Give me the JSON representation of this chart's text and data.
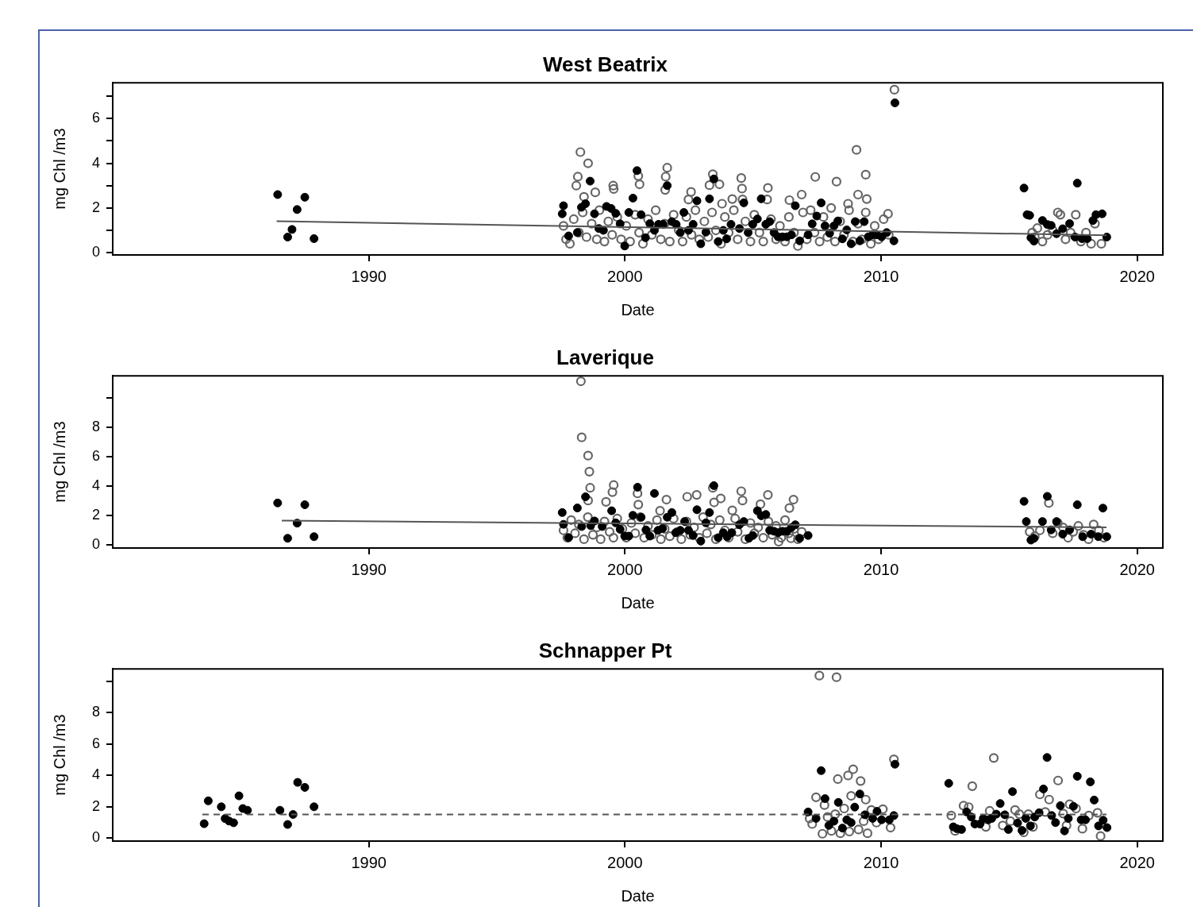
{
  "chart_data": [
    {
      "type": "scatter",
      "title": "West Beatrix",
      "xlabel": "Date",
      "ylabel": "mg Chl /m3",
      "marker": "circle",
      "xlim": [
        1980,
        2021
      ],
      "xticks": [
        1990,
        2000,
        2010,
        2020
      ],
      "ylim": [
        -0.1,
        7.6
      ],
      "yticks": [
        0,
        {
          "value": 1,
          "label": null
        },
        2,
        {
          "value": 3,
          "label": null
        },
        4,
        {
          "value": 5,
          "label": null
        },
        6,
        {
          "value": 7,
          "label": null
        }
      ],
      "series": [
        {
          "color": "#666666",
          "x": [
            1998.26,
            1998.56,
            1998.16,
            1998.1,
            1998.4,
            1998.84,
            1999.54,
            1999.56,
            2000.52,
            2000.57,
            2001.65,
            2001.57,
            2001.59,
            2002.58,
            2002.48,
            2003.43,
            2003.3,
            2003.69,
            2003.79,
            2004.19,
            2004.54,
            2004.57,
            2004.59,
            2005.58,
            2005.55,
            2006.42,
            2006.9,
            2007.43,
            2008.26,
            2008.71,
            2009.04,
            2009.4,
            2009.1,
            2009.44,
            2010.27,
            2010.52,
            1997.6,
            1997.7,
            1997.85,
            1998.0,
            1998.2,
            1998.35,
            1998.5,
            1998.7,
            1998.9,
            1999.0,
            1999.2,
            1999.35,
            1999.5,
            1999.7,
            1999.85,
            2000.05,
            2000.2,
            2000.4,
            2000.55,
            2000.7,
            2000.9,
            2001.05,
            2001.2,
            2001.4,
            2001.55,
            2001.75,
            2001.9,
            2002.1,
            2002.25,
            2002.4,
            2002.6,
            2002.75,
            2002.9,
            2003.1,
            2003.25,
            2003.4,
            2003.55,
            2003.75,
            2003.9,
            2004.05,
            2004.25,
            2004.4,
            2004.7,
            2004.9,
            2005.05,
            2005.25,
            2005.4,
            2005.7,
            2005.9,
            2006.05,
            2006.25,
            2006.4,
            2006.6,
            2006.75,
            2006.95,
            2007.1,
            2007.25,
            2007.4,
            2007.6,
            2007.75,
            2007.9,
            2008.05,
            2008.2,
            2008.4,
            2008.55,
            2008.75,
            2008.9,
            2009.1,
            2009.25,
            2009.4,
            2009.6,
            2009.75,
            2009.9,
            2010.1,
            2010.3,
            2015.9,
            2016.1,
            2016.3,
            2016.5,
            2016.7,
            2016.9,
            2017.0,
            2017.2,
            2017.4,
            2017.6,
            2017.8,
            2018.0,
            2018.2,
            2018.35,
            2018.6,
            2016.0
          ],
          "values": [
            4.5,
            4.0,
            3.4,
            3.0,
            2.5,
            2.7,
            3.0,
            2.85,
            3.43,
            3.06,
            3.8,
            2.81,
            3.4,
            2.72,
            2.38,
            3.51,
            3.02,
            3.06,
            2.19,
            2.4,
            3.34,
            2.87,
            2.38,
            2.9,
            2.38,
            2.35,
            2.6,
            3.39,
            3.18,
            2.19,
            4.6,
            3.49,
            2.6,
            2.4,
            1.74,
            7.29,
            1.2,
            0.6,
            0.4,
            1.5,
            0.9,
            1.8,
            0.7,
            1.3,
            0.6,
            1.9,
            0.5,
            1.4,
            0.8,
            1.6,
            0.6,
            1.2,
            0.5,
            1.7,
            0.9,
            0.4,
            1.5,
            0.8,
            1.9,
            0.6,
            1.3,
            0.5,
            1.7,
            1.0,
            0.5,
            1.6,
            0.8,
            1.9,
            0.6,
            1.4,
            0.7,
            1.8,
            1.0,
            0.4,
            1.6,
            0.9,
            1.9,
            0.6,
            1.4,
            0.5,
            1.7,
            0.9,
            0.5,
            1.5,
            0.6,
            1.2,
            0.5,
            1.6,
            0.9,
            0.3,
            1.8,
            0.6,
            1.9,
            0.9,
            0.5,
            1.6,
            0.7,
            2.0,
            0.5,
            1.4,
            0.8,
            1.9,
            0.5,
            1.3,
            0.6,
            1.8,
            0.4,
            1.2,
            0.6,
            1.5,
            0.8,
            0.9,
            1.1,
            0.5,
            0.8,
            1.0,
            1.8,
            1.7,
            0.6,
            0.9,
            1.7,
            0.5,
            0.9,
            0.4,
            1.3,
            0.4,
            0.7
          ]
        },
        {
          "color": "#000000",
          "x": [
            1986.44,
            1986.83,
            1987.0,
            1987.2,
            1987.5,
            1987.86,
            1997.6,
            1997.55,
            1997.8,
            1998.14,
            1998.3,
            1998.46,
            1998.64,
            1998.81,
            1998.98,
            1999.16,
            1999.28,
            1999.46,
            1999.64,
            1999.81,
            1999.99,
            2000.15,
            2000.31,
            2000.47,
            2000.63,
            2000.8,
            2000.97,
            2001.15,
            2001.31,
            2001.49,
            2001.65,
            2001.83,
            2002.0,
            2002.16,
            2002.3,
            2002.48,
            2002.66,
            2002.81,
            2002.96,
            2003.16,
            2003.3,
            2003.47,
            2003.64,
            2003.84,
            2003.97,
            2004.14,
            2004.47,
            2004.64,
            2004.81,
            2004.99,
            2005.17,
            2005.32,
            2005.5,
            2005.65,
            2005.82,
            2005.98,
            2006.15,
            2006.32,
            2006.5,
            2006.65,
            2006.82,
            2007.15,
            2007.31,
            2007.49,
            2007.66,
            2007.81,
            2007.99,
            2008.16,
            2008.31,
            2008.49,
            2008.66,
            2008.83,
            2008.99,
            2009.17,
            2009.34,
            2009.5,
            2009.67,
            2009.84,
            2010.02,
            2010.22,
            2010.5,
            2010.54,
            2015.58,
            2015.7,
            2015.8,
            2015.85,
            2015.97,
            2016.3,
            2016.49,
            2016.64,
            2016.85,
            2017.09,
            2017.36,
            2017.66,
            2017.57,
            2017.84,
            2018.05,
            2018.27,
            2018.39,
            2018.63,
            2018.81
          ],
          "values": [
            2.6,
            0.7,
            1.04,
            1.93,
            2.48,
            0.63,
            2.1,
            1.74,
            0.75,
            0.9,
            2.03,
            2.19,
            3.2,
            1.74,
            1.08,
            1.0,
            2.07,
            1.98,
            1.76,
            1.29,
            0.3,
            1.8,
            2.44,
            3.67,
            1.7,
            0.67,
            1.3,
            1.0,
            1.27,
            1.27,
            3.0,
            1.39,
            1.27,
            0.9,
            1.8,
            1.0,
            1.27,
            2.32,
            0.4,
            0.92,
            2.41,
            3.3,
            0.5,
            1.0,
            0.62,
            1.27,
            1.08,
            2.23,
            0.9,
            1.27,
            1.51,
            2.41,
            1.27,
            1.39,
            0.9,
            0.71,
            0.71,
            0.71,
            0.8,
            2.1,
            0.53,
            0.8,
            1.29,
            1.64,
            2.23,
            1.2,
            0.87,
            1.2,
            1.42,
            0.62,
            1.02,
            0.4,
            1.39,
            0.53,
            1.39,
            0.71,
            0.8,
            0.8,
            0.71,
            0.9,
            0.53,
            6.7,
            2.89,
            1.7,
            1.67,
            0.67,
            0.52,
            1.44,
            1.26,
            1.22,
            0.85,
            1.07,
            1.3,
            3.11,
            0.7,
            0.63,
            0.63,
            1.44,
            1.7,
            1.74,
            0.7
          ]
        },
        {
          "type": "line",
          "color": "#555555",
          "marker": "none",
          "line_style": "solid",
          "x": [
            1986.4,
            2018.8
          ],
          "values": [
            1.41,
            0.78
          ]
        }
      ]
    },
    {
      "type": "scatter",
      "title": "Laverique",
      "xlabel": "Date",
      "ylabel": "mg Chl /m3",
      "marker": "circle",
      "xlim": [
        1980,
        2021
      ],
      "xticks": [
        1990,
        2000,
        2010,
        2020
      ],
      "ylim": [
        -0.2,
        11.5
      ],
      "yticks": [
        0,
        2,
        4,
        6,
        8,
        {
          "value": 10,
          "label": null
        }
      ],
      "series": [
        {
          "color": "#666666",
          "x": [
            1998.28,
            1998.31,
            1998.56,
            1998.61,
            1998.64,
            1998.56,
            1999.56,
            1999.51,
            1999.26,
            2000.49,
            2000.52,
            2001.62,
            2001.37,
            2002.43,
            2002.8,
            2003.43,
            2003.48,
            2003.74,
            2004.54,
            2004.59,
            2004.19,
            2005.29,
            2005.58,
            2006.58,
            2006.42,
            2006.0,
            2006.48,
            1997.6,
            1997.75,
            1997.9,
            1998.05,
            1998.2,
            1998.4,
            1998.55,
            1998.75,
            1998.9,
            1999.05,
            1999.2,
            1999.4,
            1999.55,
            1999.7,
            1999.9,
            2000.05,
            2000.25,
            2000.4,
            2000.6,
            2000.75,
            2000.9,
            2001.05,
            2001.25,
            2001.4,
            2001.55,
            2001.75,
            2001.9,
            2002.05,
            2002.2,
            2002.4,
            2002.55,
            2002.7,
            2002.9,
            2003.05,
            2003.2,
            2003.35,
            2003.55,
            2003.7,
            2003.9,
            2004.05,
            2004.3,
            2004.4,
            2004.7,
            2004.9,
            2005.05,
            2005.2,
            2005.4,
            2005.6,
            2005.75,
            2005.9,
            2006.1,
            2006.25,
            2006.4,
            2006.6,
            2006.75,
            2006.9,
            2016.55,
            2015.8,
            2016.0,
            2016.2,
            2016.7,
            2016.9,
            2017.1,
            2017.3,
            2017.5,
            2017.7,
            2017.9,
            2018.1,
            2018.3,
            2018.5,
            2018.7
          ],
          "values": [
            11.13,
            7.32,
            6.08,
            4.99,
            3.89,
            3.03,
            4.08,
            3.6,
            2.94,
            3.51,
            2.75,
            3.09,
            2.33,
            3.28,
            3.41,
            3.89,
            2.9,
            3.17,
            3.66,
            3.03,
            2.36,
            2.78,
            3.41,
            3.09,
            2.52,
            0.23,
            0.46,
            1.0,
            0.5,
            1.7,
            0.8,
            1.4,
            0.4,
            1.9,
            0.7,
            1.2,
            0.4,
            1.6,
            0.9,
            0.5,
            1.8,
            1.1,
            0.5,
            1.5,
            0.8,
            1.9,
            0.5,
            1.3,
            0.7,
            1.7,
            0.4,
            1.1,
            0.6,
            1.8,
            0.9,
            0.4,
            1.6,
            0.7,
            1.2,
            0.5,
            1.9,
            0.8,
            1.4,
            0.4,
            1.7,
            1.0,
            0.5,
            1.8,
            0.9,
            0.4,
            1.5,
            0.8,
            1.2,
            0.5,
            1.6,
            0.7,
            1.3,
            0.5,
            1.7,
            0.8,
            1.1,
            0.4,
            0.9,
            2.86,
            0.9,
            0.6,
            1.0,
            0.8,
            1.5,
            1.2,
            0.5,
            0.9,
            1.3,
            0.7,
            0.4,
            1.4,
            1.0,
            0.5
          ]
        },
        {
          "color": "#000000",
          "x": [
            1986.44,
            1986.83,
            1987.2,
            1987.5,
            1987.86,
            1997.55,
            1997.6,
            1997.8,
            1998.14,
            1998.31,
            1998.46,
            1998.66,
            1998.81,
            1999.11,
            1999.48,
            1999.64,
            1999.81,
            1999.99,
            2000.15,
            2000.31,
            2000.49,
            2000.63,
            2000.82,
            2000.97,
            2001.15,
            2001.29,
            2001.47,
            2001.65,
            2001.83,
            2001.98,
            2002.16,
            2002.33,
            2002.48,
            2002.66,
            2002.81,
            2002.96,
            2003.16,
            2003.3,
            2003.47,
            2003.64,
            2003.84,
            2003.99,
            2004.17,
            2004.47,
            2004.64,
            2004.84,
            2004.99,
            2005.17,
            2005.32,
            2005.5,
            2005.65,
            2005.82,
            2005.98,
            2006.15,
            2006.32,
            2006.5,
            2006.65,
            2006.82,
            2007.15,
            2015.58,
            2015.67,
            2015.85,
            2015.97,
            2016.3,
            2016.49,
            2016.64,
            2016.85,
            2017.09,
            2017.36,
            2017.66,
            2017.87,
            2018.2,
            2018.66,
            2018.81,
            2018.48
          ],
          "values": [
            2.86,
            0.46,
            1.49,
            2.74,
            0.57,
            2.21,
            1.41,
            0.5,
            2.52,
            1.26,
            3.28,
            1.32,
            1.64,
            1.26,
            2.33,
            1.51,
            1.07,
            0.61,
            0.61,
            2.02,
            3.93,
            1.89,
            1.03,
            0.61,
            3.51,
            1.0,
            1.13,
            1.89,
            2.21,
            0.84,
            1.0,
            1.6,
            1.0,
            0.65,
            2.4,
            0.27,
            1.51,
            2.21,
            4.04,
            0.5,
            0.84,
            0.56,
            0.84,
            1.38,
            1.6,
            0.46,
            0.65,
            2.33,
            1.99,
            2.08,
            1.0,
            0.94,
            0.84,
            0.94,
            0.94,
            1.19,
            1.38,
            0.46,
            0.65,
            2.97,
            1.6,
            0.34,
            0.46,
            1.6,
            3.31,
            1.03,
            1.6,
            0.74,
            1.03,
            2.74,
            0.57,
            0.74,
            2.51,
            0.57,
            0.57
          ]
        },
        {
          "type": "line",
          "color": "#555555",
          "marker": "none",
          "line_style": "solid",
          "x": [
            1986.6,
            2018.8
          ],
          "values": [
            1.66,
            1.2
          ]
        }
      ]
    },
    {
      "type": "scatter",
      "title": "Schnapper Pt",
      "xlabel": "Date",
      "ylabel": "mg Chl /m3",
      "marker": "circle",
      "xlim": [
        1980,
        2021
      ],
      "xticks": [
        1990,
        2000,
        2010,
        2020
      ],
      "ylim": [
        -0.2,
        10.8
      ],
      "yticks": [
        0,
        2,
        4,
        6,
        8,
        {
          "value": 10,
          "label": null
        }
      ],
      "series": [
        {
          "color": "#666666",
          "x": [
            2007.59,
            2008.26,
            2008.31,
            2008.71,
            2008.91,
            2009.2,
            2007.46,
            2007.79,
            2008.83,
            2009.4,
            2010.5,
            2010.37,
            2007.31,
            2007.71,
            2008.06,
            2008.41,
            2008.76,
            2009.12,
            2009.47,
            2009.62,
            2010.07,
            2008.21,
            2008.56,
            2007.21,
            2007.91,
            2009.32,
            2009.82,
            2012.74,
            2012.89,
            2013.22,
            2013.42,
            2013.56,
            2014.09,
            2014.24,
            2014.4,
            2014.75,
            2015.05,
            2015.23,
            2015.4,
            2015.57,
            2015.75,
            2015.93,
            2016.2,
            2016.41,
            2016.56,
            2016.91,
            2017.11,
            2017.24,
            2017.36,
            2017.61,
            2017.86,
            2018.11,
            2018.45,
            2018.57
          ],
          "values": [
            10.37,
            10.27,
            3.76,
            3.99,
            4.39,
            3.64,
            2.6,
            2.1,
            2.69,
            2.45,
            5.02,
            0.66,
            0.89,
            0.27,
            0.45,
            0.3,
            0.41,
            0.54,
            0.3,
            1.79,
            1.84,
            1.52,
            1.88,
            1.25,
            1.34,
            1.07,
            0.98,
            1.43,
            0.45,
            2.06,
            1.97,
            3.31,
            0.71,
            1.73,
            5.11,
            0.8,
            1.07,
            1.79,
            1.52,
            0.36,
            1.52,
            0.71,
            2.78,
            1.66,
            2.45,
            3.67,
            1.56,
            0.8,
            2.15,
            1.88,
            0.59,
            1.43,
            1.61,
            0.12
          ]
        },
        {
          "color": "#000000",
          "x": [
            1983.57,
            1983.73,
            1984.24,
            1984.39,
            1984.54,
            1984.72,
            1984.93,
            1985.08,
            1985.26,
            1986.53,
            1986.83,
            1987.04,
            1987.22,
            1987.5,
            1987.86,
            2007.15,
            2007.46,
            2007.66,
            2007.81,
            2007.96,
            2008.16,
            2008.33,
            2008.49,
            2008.66,
            2008.83,
            2008.97,
            2009.17,
            2009.37,
            2009.67,
            2009.84,
            2010.02,
            2010.32,
            2010.5,
            2010.54,
            2012.64,
            2012.82,
            2012.96,
            2013.14,
            2013.34,
            2013.52,
            2013.66,
            2013.86,
            2013.99,
            2014.19,
            2014.32,
            2014.5,
            2014.65,
            2014.83,
            2014.97,
            2015.13,
            2015.33,
            2015.5,
            2015.65,
            2015.83,
            2016.0,
            2016.17,
            2016.34,
            2016.48,
            2016.66,
            2016.81,
            2017.0,
            2017.16,
            2017.31,
            2017.51,
            2017.66,
            2017.81,
            2017.98,
            2018.17,
            2018.32,
            2018.49,
            2018.67,
            2018.82
          ],
          "values": [
            0.91,
            2.37,
            1.99,
            1.24,
            1.08,
            0.97,
            2.69,
            1.88,
            1.77,
            1.77,
            0.86,
            1.5,
            3.55,
            3.23,
            1.99,
            1.66,
            1.25,
            4.3,
            2.51,
            0.8,
            1.07,
            2.27,
            0.63,
            1.16,
            0.98,
            1.97,
            2.81,
            1.48,
            1.25,
            1.7,
            1.16,
            1.16,
            1.43,
            4.71,
            3.49,
            0.71,
            0.59,
            0.54,
            1.66,
            1.34,
            0.89,
            0.89,
            1.25,
            1.16,
            1.25,
            1.52,
            2.2,
            1.48,
            0.54,
            2.96,
            0.95,
            0.48,
            1.25,
            0.77,
            1.34,
            1.61,
            3.13,
            5.14,
            1.43,
            0.98,
            2.06,
            0.45,
            1.25,
            2.02,
            3.94,
            1.16,
            1.16,
            3.58,
            2.42,
            0.77,
            1.13,
            0.66
          ]
        },
        {
          "type": "line",
          "color": "#555555",
          "marker": "none",
          "line_style": "dashed",
          "x": [
            1983.5,
            2018.8
          ],
          "values": [
            1.5,
            1.5
          ]
        }
      ]
    }
  ]
}
